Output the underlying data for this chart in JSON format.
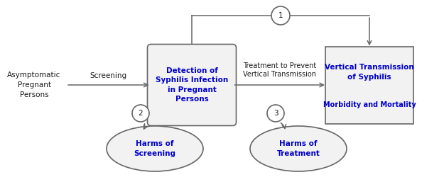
{
  "bg_color": "#ffffff",
  "box_middle_text": "Detection of\nSyphilis Infection\nin Pregnant\nPersons",
  "box_right_text1": "Vertical Transmission\nof Syphilis",
  "box_right_text2": "Morbidity and Mortality",
  "left_text": "Asymptomatic\nPregnant\nPersons",
  "arrow_screening_label": "Screening",
  "arrow_treatment_label": "Treatment to Prevent\nVertical Transmission",
  "kq1_label": "1",
  "kq2_label": "2",
  "kq3_label": "3",
  "harms_screening_text": "Harms of\nScreening",
  "harms_treatment_text": "Harms of\nTreatment",
  "text_color_blue": "#0000cc",
  "text_color_black": "#1a1a1a",
  "box_edge_color": "#666666",
  "box_fill_color": "#f2f2f2",
  "font_size": 7.5
}
